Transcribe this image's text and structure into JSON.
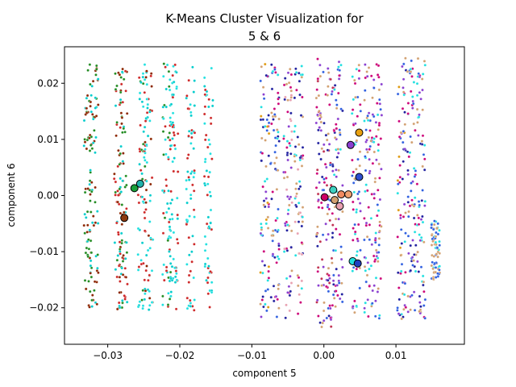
{
  "chart_data": {
    "type": "scatter",
    "title_lines": [
      "K-Means Cluster Visualization for",
      "5 & 6"
    ],
    "xlabel": "component 5",
    "ylabel": "component 6",
    "xlim": [
      -0.036,
      0.0195
    ],
    "ylim": [
      -0.0265,
      0.0265
    ],
    "xticks": [
      -0.03,
      -0.02,
      -0.01,
      0.0,
      0.01
    ],
    "xtick_labels": [
      "−0.03",
      "−0.02",
      "−0.01",
      "0.00",
      "0.01"
    ],
    "yticks": [
      -0.02,
      -0.01,
      0.0,
      0.01,
      0.02
    ],
    "ytick_labels": [
      "−0.02",
      "−0.01",
      "0.00",
      "0.01",
      "0.02"
    ],
    "grid": false,
    "legend": "none",
    "point_colors": [
      "#00cccc",
      "#8b2500",
      "#228b22",
      "#cd2626",
      "#cc0077",
      "#1e1e9e",
      "#2f5fe0",
      "#8a3fd0",
      "#e09a10",
      "#d2a070",
      "#e8a0b0",
      "#20e0e0",
      "#c03050",
      "#996633"
    ],
    "point_columns": [
      {
        "x": -0.0327,
        "y": [
          -0.0205,
          0.0235
        ],
        "colors": [
          0,
          1,
          2
        ]
      },
      {
        "x": -0.0319,
        "y": [
          -0.0205,
          0.0235
        ],
        "colors": [
          0,
          1,
          2
        ]
      },
      {
        "x": -0.0285,
        "y": [
          -0.0205,
          0.0235
        ],
        "colors": [
          0,
          1,
          2,
          3
        ]
      },
      {
        "x": -0.0278,
        "y": [
          -0.0205,
          0.0235
        ],
        "colors": [
          0,
          1,
          2,
          3
        ]
      },
      {
        "x": -0.0252,
        "y": [
          -0.0205,
          0.0235
        ],
        "colors": [
          0,
          2,
          3,
          11
        ]
      },
      {
        "x": -0.0243,
        "y": [
          -0.0205,
          0.0235
        ],
        "colors": [
          0,
          1,
          3,
          11
        ]
      },
      {
        "x": -0.0218,
        "y": [
          -0.0205,
          0.0235
        ],
        "colors": [
          0,
          3,
          11,
          2
        ]
      },
      {
        "x": -0.0208,
        "y": [
          -0.0205,
          0.0235
        ],
        "colors": [
          0,
          3,
          11
        ]
      },
      {
        "x": -0.0185,
        "y": [
          -0.0205,
          0.0235
        ],
        "colors": [
          0,
          11,
          3
        ]
      },
      {
        "x": -0.016,
        "y": [
          -0.0205,
          0.0235
        ],
        "colors": [
          0,
          11,
          3
        ]
      },
      {
        "x": -0.0082,
        "y": [
          -0.022,
          0.0235
        ],
        "colors": [
          8,
          9,
          7,
          4,
          5,
          6,
          11
        ]
      },
      {
        "x": -0.0068,
        "y": [
          -0.022,
          0.0235
        ],
        "colors": [
          9,
          7,
          4,
          5,
          11,
          6
        ]
      },
      {
        "x": -0.005,
        "y": [
          -0.022,
          0.0235
        ],
        "colors": [
          9,
          7,
          4,
          5,
          11,
          10
        ]
      },
      {
        "x": -0.0035,
        "y": [
          -0.022,
          0.0235
        ],
        "colors": [
          9,
          4,
          5,
          11,
          10
        ]
      },
      {
        "x": -0.0005,
        "y": [
          -0.0235,
          0.0245
        ],
        "colors": [
          9,
          4,
          5,
          6,
          12,
          7
        ]
      },
      {
        "x": 0.0008,
        "y": [
          -0.0235,
          0.0245
        ],
        "colors": [
          9,
          4,
          5,
          6,
          12,
          7
        ]
      },
      {
        "x": 0.002,
        "y": [
          -0.0235,
          0.0245
        ],
        "colors": [
          9,
          4,
          5,
          6,
          11,
          7
        ]
      },
      {
        "x": 0.0045,
        "y": [
          -0.022,
          0.0235
        ],
        "colors": [
          7,
          6,
          11,
          9,
          4
        ]
      },
      {
        "x": 0.0062,
        "y": [
          -0.022,
          0.0235
        ],
        "colors": [
          7,
          6,
          11,
          9,
          4
        ]
      },
      {
        "x": 0.0075,
        "y": [
          -0.022,
          0.0235
        ],
        "colors": [
          7,
          6,
          11,
          9,
          4
        ]
      },
      {
        "x": 0.0108,
        "y": [
          -0.022,
          0.0245
        ],
        "colors": [
          7,
          4,
          5,
          6,
          11,
          9,
          8
        ]
      },
      {
        "x": 0.0122,
        "y": [
          -0.022,
          0.0245
        ],
        "colors": [
          7,
          4,
          5,
          6,
          11,
          9
        ]
      },
      {
        "x": 0.0135,
        "y": [
          -0.022,
          0.0245
        ],
        "colors": [
          7,
          4,
          5,
          6,
          11,
          9
        ]
      },
      {
        "x": 0.0155,
        "y": [
          -0.015,
          -0.004
        ],
        "colors": [
          11,
          9,
          6
        ]
      }
    ],
    "centroids": [
      {
        "x": -0.0255,
        "y": 0.0021,
        "color": "#20b2aa"
      },
      {
        "x": -0.0263,
        "y": 0.0013,
        "color": "#1a9f3a"
      },
      {
        "x": -0.0277,
        "y": -0.004,
        "color": "#8b3a10"
      },
      {
        "x": 0.0049,
        "y": 0.0112,
        "color": "#e8a010"
      },
      {
        "x": 0.0037,
        "y": 0.009,
        "color": "#8a3fd0"
      },
      {
        "x": 0.0049,
        "y": 0.0033,
        "color": "#2f4fd0"
      },
      {
        "x": 0.0001,
        "y": -0.0003,
        "color": "#cc0066"
      },
      {
        "x": 0.0013,
        "y": 0.001,
        "color": "#3fd0c0"
      },
      {
        "x": 0.0024,
        "y": 0.0002,
        "color": "#f08a60"
      },
      {
        "x": 0.0034,
        "y": 0.0002,
        "color": "#f0a070"
      },
      {
        "x": 0.0015,
        "y": -0.0008,
        "color": "#d2a070"
      },
      {
        "x": 0.0022,
        "y": -0.0019,
        "color": "#e8a0b0"
      },
      {
        "x": 0.004,
        "y": -0.0117,
        "color": "#20e0e0"
      },
      {
        "x": 0.0047,
        "y": -0.0121,
        "color": "#1e3fc0"
      }
    ]
  }
}
